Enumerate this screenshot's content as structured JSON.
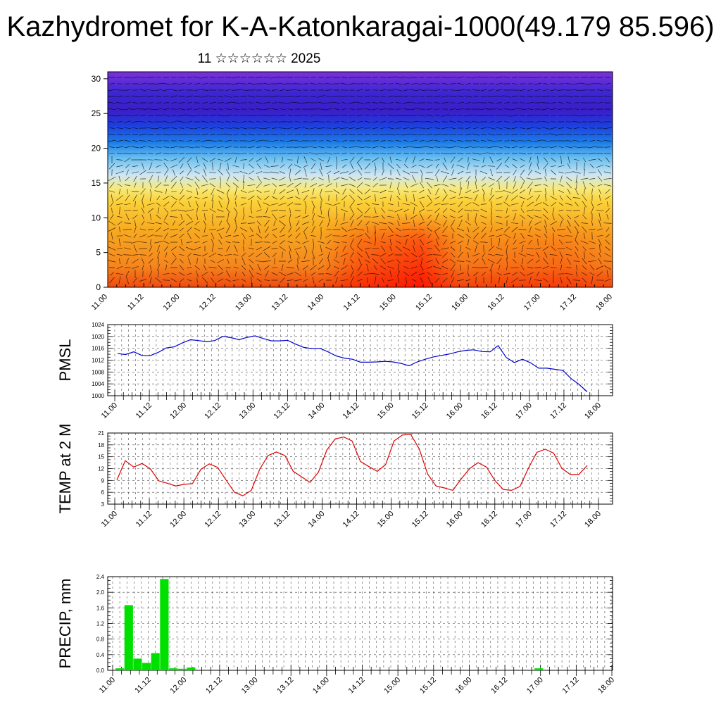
{
  "header": {
    "title": "Kazhydromet for K-A-Katonkaragai-1000(49.179 85.596)",
    "subtitle": "11 ☆☆☆☆☆☆ 2025"
  },
  "colors": {
    "pmsl_line": "#0000cc",
    "temp_line": "#dd0000",
    "precip_bar": "#00e000",
    "grid": "#000000"
  },
  "chart_data": [
    {
      "type": "heatmap",
      "name": "height-time cross-section",
      "title": "",
      "xlabel": "",
      "ylabel": "",
      "x_ticks": [
        "11.00",
        "11.12",
        "12.00",
        "12.12",
        "13.00",
        "13.12",
        "14.00",
        "14.12",
        "15.00",
        "15.12",
        "16.00",
        "16.12",
        "17.00",
        "17.12",
        "18.00"
      ],
      "y_ticks": [
        0,
        5,
        10,
        15,
        20,
        25,
        30
      ],
      "ylim": [
        0,
        31
      ],
      "overlay": "wind vectors",
      "color_scale": "red (warm, low levels) through orange and yellow to light blue, blue and violet (cold, upper levels)"
    },
    {
      "type": "line",
      "ylabel": "PMSL",
      "ylim": [
        1000,
        1024
      ],
      "y_ticks": [
        1000,
        1004,
        1008,
        1012,
        1016,
        1020,
        1024
      ],
      "x_ticks": [
        "11.00",
        "11.12",
        "12.00",
        "12.12",
        "13.00",
        "13.12",
        "14.00",
        "14.12",
        "15.00",
        "15.12",
        "16.00",
        "16.12",
        "17.00",
        "17.12",
        "18.00"
      ],
      "grid": true,
      "series": [
        {
          "values": [
            1014.2,
            1013.9,
            1014.8,
            1013.6,
            1013.5,
            1014.6,
            1016.1,
            1016.5,
            1017.8,
            1018.9,
            1018.6,
            1018.2,
            1018.6,
            1020.0,
            1019.6,
            1018.9,
            1019.7,
            1020.2,
            1019.3,
            1018.5,
            1018.5,
            1018.7,
            1017.4,
            1016.3,
            1015.9,
            1016.0,
            1014.8,
            1013.4,
            1012.7,
            1012.3,
            1011.3,
            1011.3,
            1011.4,
            1011.6,
            1011.4,
            1010.9,
            1010.1,
            1011.4,
            1012.3,
            1013.1,
            1013.6,
            1014.1,
            1014.8,
            1015.3,
            1015.5,
            1014.9,
            1014.8,
            1016.9,
            1012.9,
            1011.2,
            1012.3,
            1011.1,
            1009.3,
            1009.3,
            1008.9,
            1008.5,
            1005.8,
            1003.8,
            1001.3
          ]
        }
      ]
    },
    {
      "type": "line",
      "ylabel": "TEMP at 2 M",
      "ylim": [
        3,
        21
      ],
      "y_ticks": [
        3,
        6,
        9,
        12,
        15,
        18,
        21
      ],
      "x_ticks": [
        "11.00",
        "11.12",
        "12.00",
        "12.12",
        "13.00",
        "13.12",
        "14.00",
        "14.12",
        "15.00",
        "15.12",
        "16.00",
        "16.12",
        "17.00",
        "17.12",
        "18.00"
      ],
      "grid": true,
      "series": [
        {
          "values": [
            9.1,
            14.0,
            12.4,
            13.3,
            11.9,
            8.9,
            8.3,
            7.6,
            8.0,
            8.2,
            11.8,
            13.2,
            12.3,
            9.1,
            6.0,
            5.1,
            6.5,
            11.8,
            15.3,
            16.2,
            15.3,
            11.3,
            9.9,
            8.5,
            11.1,
            16.7,
            19.5,
            20.0,
            19.0,
            13.8,
            12.5,
            11.3,
            13.0,
            19.0,
            20.5,
            20.6,
            17.0,
            10.6,
            7.6,
            7.1,
            6.5,
            9.4,
            12.0,
            13.5,
            12.4,
            9.0,
            6.7,
            6.5,
            7.5,
            12.1,
            16.1,
            16.9,
            15.9,
            12.0,
            10.5,
            10.5,
            12.8
          ]
        }
      ]
    },
    {
      "type": "bar",
      "ylabel": "PRECIP, mm",
      "ylim": [
        0,
        2.4
      ],
      "y_ticks": [
        "0.0",
        "0.4",
        "0.8",
        "1.2",
        "1.6",
        "2.0",
        "2.4"
      ],
      "x_ticks": [
        "11.00",
        "11.12",
        "12.00",
        "12.12",
        "13.00",
        "13.12",
        "14.00",
        "14.12",
        "15.00",
        "15.12",
        "16.00",
        "16.12",
        "17.00",
        "17.12",
        "18.00"
      ],
      "grid": true,
      "bar_step_hours": 3,
      "values": [
        0.05,
        1.67,
        0.3,
        0.19,
        0.44,
        2.34,
        0.05,
        0.04,
        0.07,
        0,
        0,
        0,
        0,
        0,
        0,
        0,
        0,
        0,
        0,
        0,
        0,
        0,
        0,
        0,
        0,
        0,
        0,
        0,
        0,
        0,
        0,
        0,
        0,
        0,
        0,
        0,
        0,
        0,
        0,
        0,
        0,
        0,
        0,
        0,
        0,
        0,
        0,
        0.05,
        0,
        0,
        0,
        0,
        0,
        0,
        0,
        0
      ]
    }
  ]
}
